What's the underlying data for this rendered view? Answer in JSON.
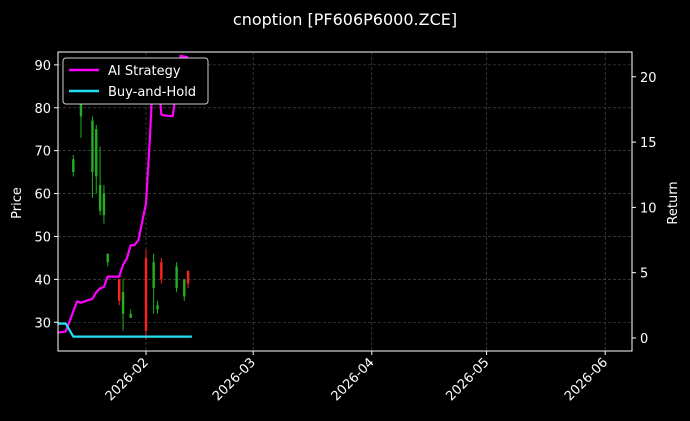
{
  "chart_data": {
    "type": "candlestick+line",
    "title": "cnoption [PF606P6000.ZCE]",
    "ylabel_left": "Price",
    "ylabel_right": "Return",
    "ylim_left": [
      23.3,
      93.0
    ],
    "ylim_right": [
      -1.0,
      21.9
    ],
    "yticks_left": [
      30,
      40,
      50,
      60,
      70,
      80,
      90
    ],
    "yticks_right": [
      0,
      5,
      10,
      15,
      20
    ],
    "xlim": [
      "2026-01-09",
      "2026-06-08"
    ],
    "xticks": [
      {
        "date": "2026-02-01",
        "label": "2026-02"
      },
      {
        "date": "2026-03-01",
        "label": "2026-03"
      },
      {
        "date": "2026-04-01",
        "label": "2026-04"
      },
      {
        "date": "2026-05-01",
        "label": "2026-05"
      },
      {
        "date": "2026-06-01",
        "label": "2026-06"
      }
    ],
    "grid": true,
    "legend_position": "upper-left",
    "colors": {
      "up": "#22b022",
      "down": "#ff2020",
      "ai": "#ff00ff",
      "bh": "#22e0f0",
      "background": "#000000",
      "grid": "#555555"
    },
    "candles": [
      {
        "date": "2026-01-13",
        "open": 65,
        "close": 68,
        "high": 69,
        "low": 64
      },
      {
        "date": "2026-01-15",
        "open": 78,
        "close": 82,
        "high": 84,
        "low": 73
      },
      {
        "date": "2026-01-18",
        "open": 65,
        "close": 77,
        "high": 78,
        "low": 59
      },
      {
        "date": "2026-01-19",
        "open": 64,
        "close": 75,
        "high": 76,
        "low": 60
      },
      {
        "date": "2026-01-20",
        "open": 56,
        "close": 62,
        "high": 71,
        "low": 55
      },
      {
        "date": "2026-01-21",
        "open": 55,
        "close": 60,
        "high": 62,
        "low": 53
      },
      {
        "date": "2026-01-22",
        "open": 44,
        "close": 46,
        "high": 46,
        "low": 43
      },
      {
        "date": "2026-01-25",
        "open": 40,
        "close": 35,
        "high": 40,
        "low": 34
      },
      {
        "date": "2026-01-26",
        "open": 32,
        "close": 37,
        "high": 40,
        "low": 28
      },
      {
        "date": "2026-01-28",
        "open": 31,
        "close": 32,
        "high": 33,
        "low": 31
      },
      {
        "date": "2026-02-01",
        "open": 45,
        "close": 28,
        "high": 47,
        "low": 26
      },
      {
        "date": "2026-02-03",
        "open": 38,
        "close": 44,
        "high": 46,
        "low": 32
      },
      {
        "date": "2026-02-04",
        "open": 33,
        "close": 34,
        "high": 35,
        "low": 32
      },
      {
        "date": "2026-02-05",
        "open": 44,
        "close": 40,
        "high": 45,
        "low": 39
      },
      {
        "date": "2026-02-09",
        "open": 38,
        "close": 43,
        "high": 44,
        "low": 37
      },
      {
        "date": "2026-02-11",
        "open": 36,
        "close": 40,
        "high": 40,
        "low": 35
      },
      {
        "date": "2026-02-12",
        "open": 42,
        "close": 39,
        "high": 42,
        "low": 38
      }
    ],
    "series": [
      {
        "name": "AI Strategy",
        "color": "#ff00ff",
        "points": [
          [
            "2026-01-09",
            0.4
          ],
          [
            "2026-01-11",
            0.5
          ],
          [
            "2026-01-14",
            2.8
          ],
          [
            "2026-01-15",
            2.7
          ],
          [
            "2026-01-18",
            3.0
          ],
          [
            "2026-01-19",
            3.5
          ],
          [
            "2026-01-20",
            3.8
          ],
          [
            "2026-01-21",
            3.9
          ],
          [
            "2026-01-22",
            4.7
          ],
          [
            "2026-01-24",
            4.7
          ],
          [
            "2026-01-25",
            4.7
          ],
          [
            "2026-01-26",
            5.6
          ],
          [
            "2026-01-27",
            6.1
          ],
          [
            "2026-01-28",
            7.1
          ],
          [
            "2026-01-29",
            7.1
          ],
          [
            "2026-01-30",
            7.5
          ],
          [
            "2026-02-01",
            10.3
          ],
          [
            "2026-02-02",
            15.2
          ],
          [
            "2026-02-03",
            21.2
          ],
          [
            "2026-02-04",
            21.3
          ],
          [
            "2026-02-05",
            17.1
          ],
          [
            "2026-02-07",
            17.0
          ],
          [
            "2026-02-08",
            17.0
          ],
          [
            "2026-02-10",
            21.6
          ],
          [
            "2026-02-12",
            21.5
          ]
        ]
      },
      {
        "name": "Buy-and-Hold",
        "color": "#22e0f0",
        "points": [
          [
            "2026-01-09",
            1.1
          ],
          [
            "2026-01-11",
            1.1
          ],
          [
            "2026-01-13",
            0.1
          ],
          [
            "2026-02-13",
            0.1
          ]
        ]
      }
    ]
  }
}
